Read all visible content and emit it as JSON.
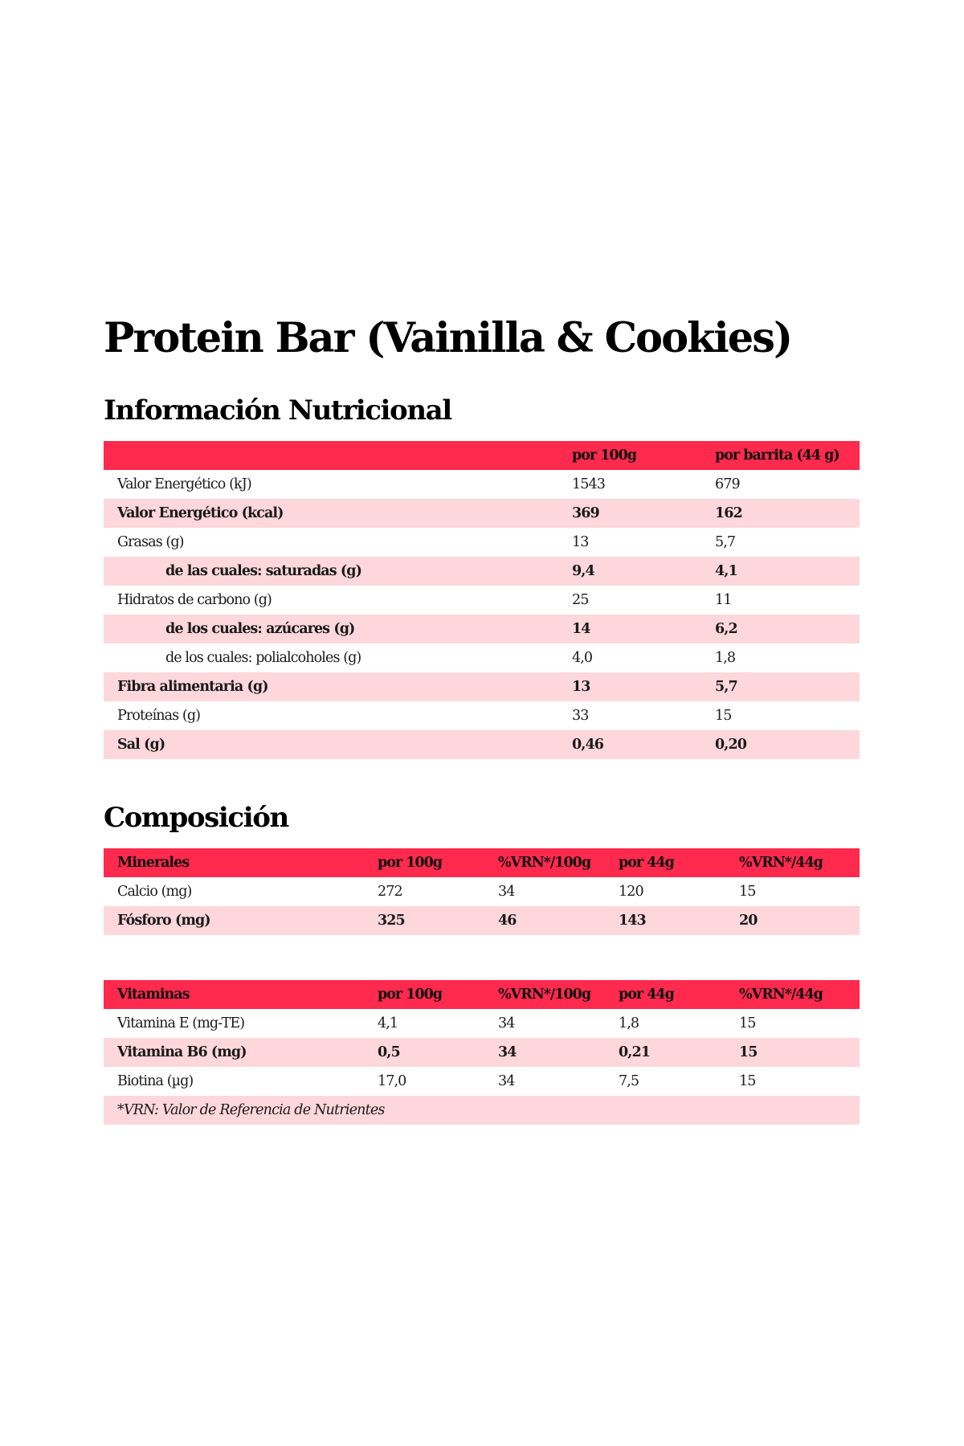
{
  "title": "Protein Bar (Vainilla & Cookies)",
  "nutrition": {
    "heading": "Información Nutricional",
    "columns": {
      "label": "",
      "per100": "por 100g",
      "perBar": "por barrita (44 g)"
    },
    "rows": [
      {
        "label": "Valor Energético (kJ)",
        "per100": "1543",
        "perBar": "679"
      },
      {
        "label": "Valor Energético (kcal)",
        "per100": "369",
        "perBar": "162"
      },
      {
        "label": "Grasas (g)",
        "per100": "13",
        "perBar": "5,7"
      },
      {
        "label": "de las cuales: saturadas (g)",
        "per100": "9,4",
        "perBar": "4,1"
      },
      {
        "label": "Hidratos de carbono (g)",
        "per100": "25",
        "perBar": "11"
      },
      {
        "label": "de los cuales: azúcares (g)",
        "per100": "14",
        "perBar": "6,2"
      },
      {
        "label": "de los cuales: polialcoholes (g)",
        "per100": "4,0",
        "perBar": "1,8"
      },
      {
        "label": "Fibra alimentaria (g)",
        "per100": "13",
        "perBar": "5,7"
      },
      {
        "label": "Proteínas (g)",
        "per100": "33",
        "perBar": "15"
      },
      {
        "label": "Sal (g)",
        "per100": "0,46",
        "perBar": "0,20"
      }
    ]
  },
  "composition": {
    "heading": "Composición",
    "minerals": {
      "columns": {
        "label": "Minerales",
        "per100": "por 100g",
        "vrn100": "%VRN*/100g",
        "per44": "por 44g",
        "vrn44": "%VRN*/44g"
      },
      "rows": [
        {
          "label": "Calcio (mg)",
          "per100": "272",
          "vrn100": "34",
          "per44": "120",
          "vrn44": "15"
        },
        {
          "label": "Fósforo (mg)",
          "per100": "325",
          "vrn100": "46",
          "per44": "143",
          "vrn44": "20"
        }
      ]
    },
    "vitamins": {
      "columns": {
        "label": "Vitaminas",
        "per100": "por 100g",
        "vrn100": "%VRN*/100g",
        "per44": "por 44g",
        "vrn44": "%VRN*/44g"
      },
      "rows": [
        {
          "label": "Vitamina E (mg-TE)",
          "per100": "4,1",
          "vrn100": "34",
          "per44": "1,8",
          "vrn44": "15"
        },
        {
          "label": "Vitamina B6 (mg)",
          "per100": "0,5",
          "vrn100": "34",
          "per44": "0,21",
          "vrn44": "15"
        },
        {
          "label": "Biotina (µg)",
          "per100": "17,0",
          "vrn100": "34",
          "per44": "7,5",
          "vrn44": "15"
        }
      ],
      "note": "*VRN: Valor de Referencia de Nutrientes"
    }
  },
  "colors": {
    "header_red": "#ff2a4d",
    "row_pink": "#fdd7dc"
  }
}
